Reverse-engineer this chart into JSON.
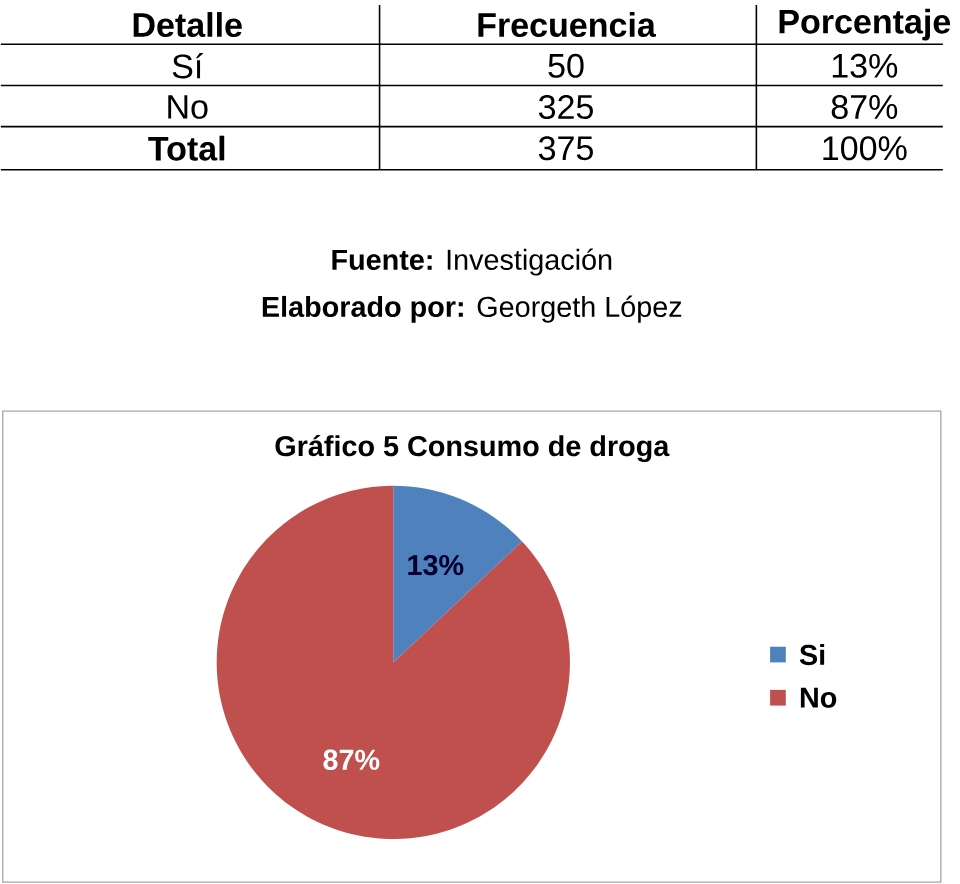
{
  "chart_data": {
    "type": "pie",
    "title": "Gráfico 5 Consumo de droga",
    "categories": [
      "Si",
      "No"
    ],
    "values": [
      13,
      87
    ],
    "colors": [
      "#4f81bd",
      "#c0504d"
    ],
    "value_labels": [
      "13%",
      "87%"
    ],
    "legend": "right",
    "annotations": [
      "Detalle",
      "Frecuencia",
      "Porcentaje",
      "Sí",
      "50",
      "13%",
      "No",
      "325",
      "87%",
      "Total",
      "375",
      "100%",
      "**Fuente:** Investigación",
      "**Elaborado por:** Georgeth López"
    ]
  }
}
